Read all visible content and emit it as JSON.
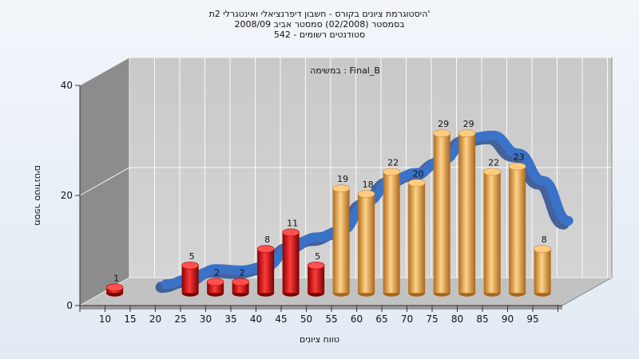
{
  "chart_data": {
    "type": "bar",
    "title_lines": [
      "היסטוגרמת ציונים בקורס - חשבון דיפרנציאלי ואינטגרלי 2ת'",
      "בסמסטר  (02/2008)  סמסטר אביב 2008/09",
      "542 - סטודנטים רשומים"
    ],
    "annotation": "במשימה : Final_B",
    "xlabel": "טווח ציונים",
    "ylabel": "מספר סטודנטים",
    "categories": [
      "10",
      "15",
      "20",
      "25",
      "30",
      "35",
      "40",
      "45",
      "50",
      "55",
      "60",
      "65",
      "70",
      "75",
      "80",
      "85",
      "90",
      "95"
    ],
    "yticks": [
      0,
      20,
      40
    ],
    "ylim": [
      0,
      40
    ],
    "grid": true,
    "series": [
      {
        "values": [
          1,
          0,
          0,
          5,
          2,
          2,
          8,
          11,
          5,
          19,
          18,
          22,
          20,
          29,
          29,
          22,
          23,
          8
        ]
      }
    ],
    "threshold_category": "55",
    "colors": {
      "fail": "#e01010",
      "pass": "#f0ad4e",
      "curve": "#3a72c8",
      "wall": "#8c8c8c",
      "floor": "#c4c4c4",
      "plot_bg": "#c9c9c9"
    }
  }
}
